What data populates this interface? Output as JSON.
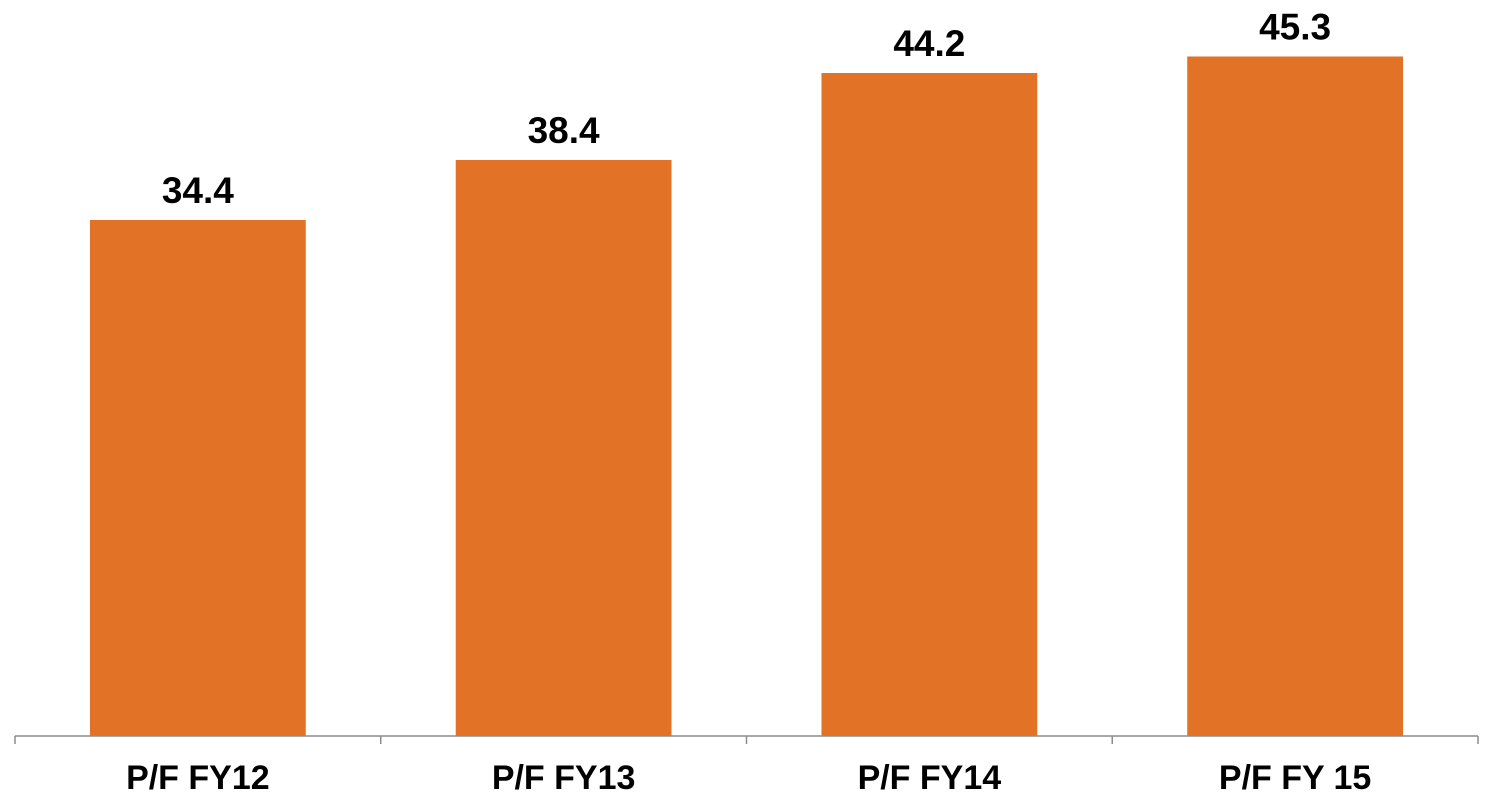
{
  "chart_data": {
    "type": "bar",
    "categories": [
      "P/F FY12",
      "P/F FY13",
      "P/F FY14",
      "P/F FY 15"
    ],
    "values": [
      34.4,
      38.4,
      44.2,
      45.3
    ],
    "data_labels": [
      "34.4",
      "38.4",
      "44.2",
      "45.3"
    ],
    "title": "",
    "xlabel": "",
    "ylabel": "",
    "ylim": [
      0,
      48.6
    ],
    "grid": false,
    "legend": "none",
    "colors": {
      "bar": "#E27226",
      "axis": "#8C8C8C",
      "text": "#000000"
    }
  }
}
